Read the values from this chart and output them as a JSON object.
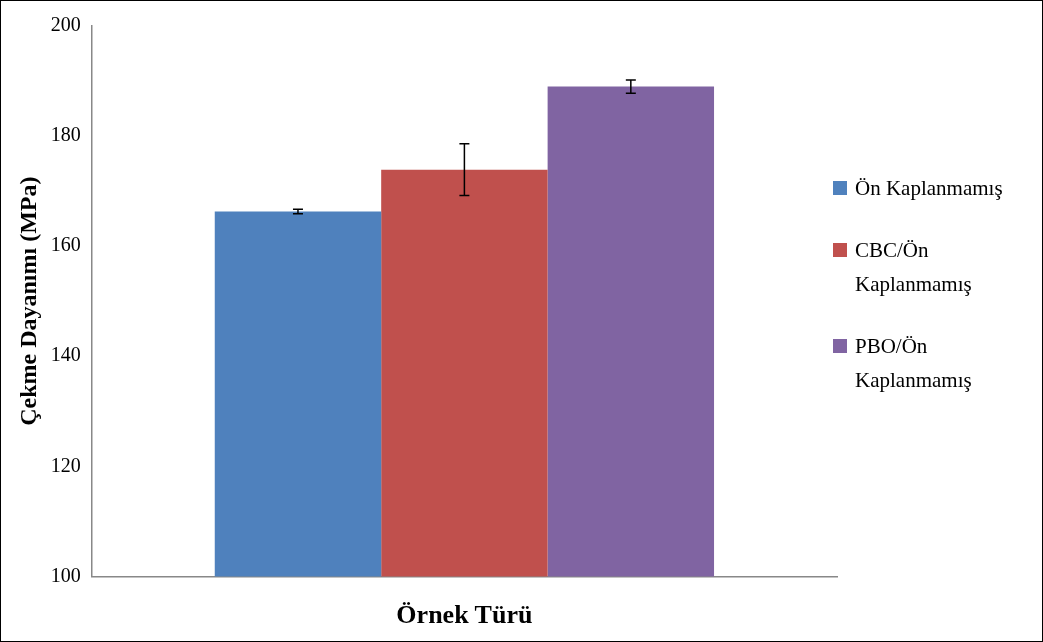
{
  "chart_data": {
    "type": "bar",
    "xlabel": "Örnek Türü",
    "ylabel": "Çekme Dayanımı (MPa)",
    "categories": [
      null
    ],
    "series": [
      {
        "name": "Ön Kaplanmamış",
        "color": "#4f81bd",
        "values": [
          166.3
        ],
        "errors": [
          0.4
        ]
      },
      {
        "name": "CBC/Ön Kaplanmamış",
        "color": "#c0504d",
        "values": [
          173.9
        ],
        "errors": [
          4.7
        ]
      },
      {
        "name": "PBO/Ön Kaplanmamış",
        "color": "#8064a2",
        "values": [
          189.0
        ],
        "errors": [
          1.2
        ]
      }
    ],
    "ylim": [
      100,
      200
    ],
    "yticks": [
      100,
      120,
      140,
      160,
      180,
      200
    ],
    "grid": false,
    "legend": "right"
  }
}
